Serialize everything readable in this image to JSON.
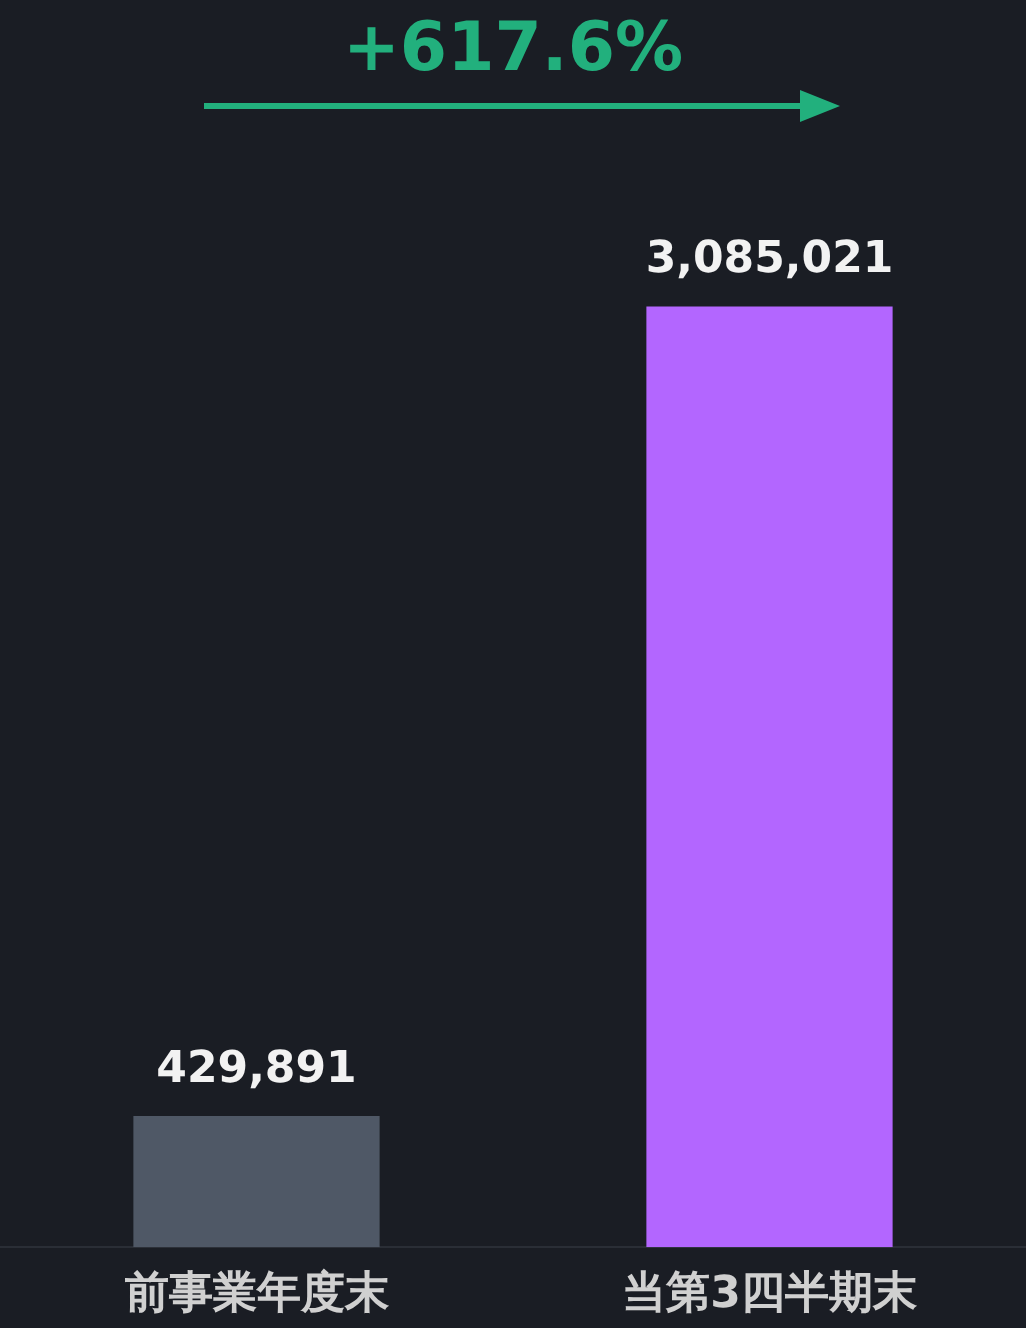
{
  "chart_data": {
    "type": "bar",
    "categories": [
      "前事業年度末",
      "当第3四半期末"
    ],
    "values": [
      429891,
      3085021
    ],
    "colors": [
      "#4f5866",
      "#b366ff"
    ],
    "data_labels": true,
    "value_labels": [
      "429,891",
      "3,085,021"
    ],
    "annotations": [
      "+617.6%"
    ],
    "grid": false,
    "legend": false
  }
}
